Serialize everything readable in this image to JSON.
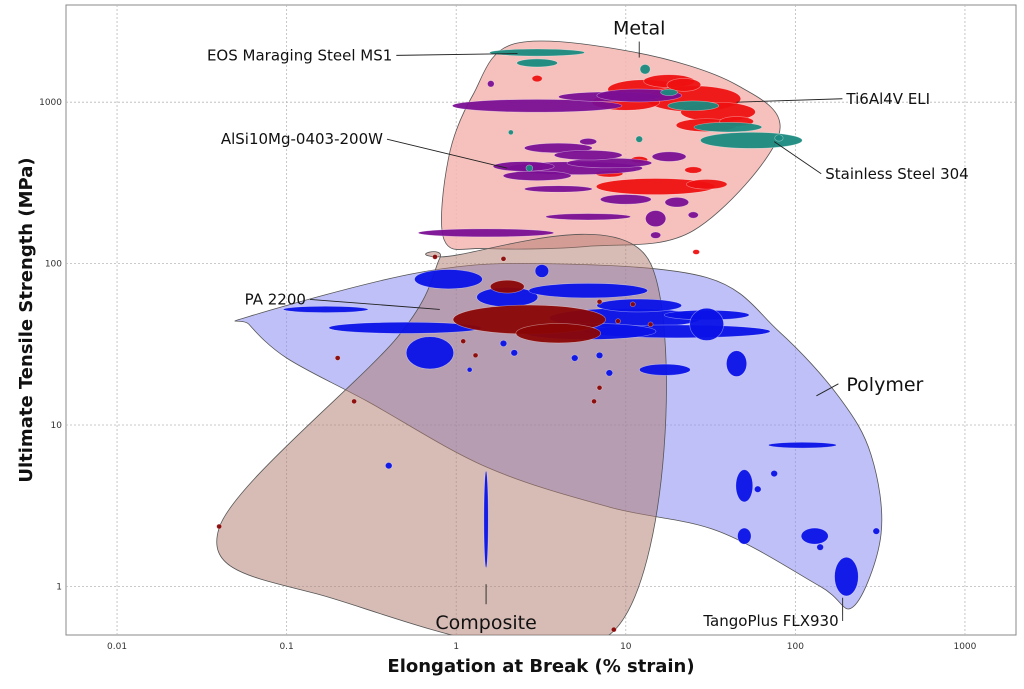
{
  "chart_data": {
    "type": "scatter",
    "title": "",
    "xlabel": "Elongation at Break (% strain)",
    "ylabel": "Ultimate Tensile Strength (MPa)",
    "xscale": "log",
    "yscale": "log",
    "xlim": [
      0.005,
      2000
    ],
    "ylim": [
      0.5,
      4000
    ],
    "grid": true,
    "x_ticks": [
      {
        "v": 0.01,
        "label": "0.01"
      },
      {
        "v": 0.1,
        "label": "0.1"
      },
      {
        "v": 1,
        "label": "1"
      },
      {
        "v": 10,
        "label": "10"
      },
      {
        "v": 100,
        "label": "100"
      },
      {
        "v": 1000,
        "label": "1000"
      }
    ],
    "y_ticks": [
      {
        "v": 1,
        "label": "1"
      },
      {
        "v": 10,
        "label": "10"
      },
      {
        "v": 100,
        "label": "100"
      },
      {
        "v": 1000,
        "label": "1000"
      }
    ],
    "colors": {
      "metal_envelope": "#f4b6b2",
      "polymer_envelope": "#8a8cf0",
      "composite_envelope": "#b07a6e",
      "metal_red": "#ee1111",
      "metal_purple": "#7a0f93",
      "metal_teal": "#1a8a80",
      "polymer_blue": "#0a12e8",
      "composite_maroon": "#8a0606",
      "grid": "#b8b8b8"
    },
    "families": [
      {
        "name": "Metal",
        "label_at": [
          12,
          2900
        ],
        "envelope": [
          [
            2.2,
            2300
          ],
          [
            11,
            2050
          ],
          [
            45,
            1280
          ],
          [
            80,
            630
          ],
          [
            25,
            160
          ],
          [
            6,
            128
          ],
          [
            1.5,
            124
          ],
          [
            0.85,
            140
          ],
          [
            0.9,
            450
          ],
          [
            1.25,
            1100
          ]
        ]
      },
      {
        "name": "Polymer",
        "label_at": [
          200,
          18
        ],
        "envelope": [
          [
            0.06,
            47
          ],
          [
            0.6,
            88
          ],
          [
            3.3,
            100
          ],
          [
            30,
            82
          ],
          [
            80,
            38
          ],
          [
            180,
            15
          ],
          [
            280,
            6.5
          ],
          [
            320,
            2.1
          ],
          [
            220,
            0.75
          ],
          [
            140,
            1.0
          ],
          [
            35,
            2.2
          ],
          [
            8,
            3.1
          ],
          [
            1.5,
            5.5
          ],
          [
            0.3,
            14
          ],
          [
            0.1,
            26
          ],
          [
            0.06,
            42
          ]
        ]
      },
      {
        "name": "Composite",
        "label_at": [
          1.5,
          0.6
        ],
        "envelope": [
          [
            0.8,
            110
          ],
          [
            14,
            100
          ],
          [
            8.5,
            0.53
          ],
          [
            0.15,
            0.9
          ],
          [
            0.04,
            2.3
          ],
          [
            0.45,
            35
          ],
          [
            0.8,
            108
          ]
        ]
      }
    ],
    "annotations": [
      {
        "text": "EOS Maraging Steel MS1",
        "label_at": [
          0.42,
          1950
        ],
        "point": [
          2.3,
          2000
        ]
      },
      {
        "text": "Ti6Al4V ELI",
        "label_at": [
          200,
          1050
        ],
        "point": [
          45,
          1000
        ]
      },
      {
        "text": "AlSi10Mg-0403-200W",
        "label_at": [
          0.37,
          590
        ],
        "point": [
          2,
          390
        ]
      },
      {
        "text": "Stainless Steel 304",
        "label_at": [
          150,
          360
        ],
        "point": [
          75,
          570
        ]
      },
      {
        "text": "PA 2200",
        "label_at": [
          0.13,
          60
        ],
        "point": [
          0.8,
          52
        ]
      },
      {
        "text": "TangoPlus FLX930",
        "label_at": [
          180,
          0.61
        ],
        "point": [
          190,
          0.85
        ]
      }
    ],
    "series": [
      {
        "family": "Metal",
        "color": "metal_red",
        "points": [
          [
            13,
            1200,
            0.22,
            0.06
          ],
          [
            25,
            1050,
            0.28,
            0.08
          ],
          [
            35,
            870,
            0.22,
            0.06
          ],
          [
            18,
            1350,
            0.15,
            0.04
          ],
          [
            30,
            720,
            0.18,
            0.04
          ],
          [
            10,
            1000,
            0.2,
            0.05
          ],
          [
            45,
            760,
            0.1,
            0.03
          ],
          [
            15,
            300,
            0.35,
            0.05
          ],
          [
            30,
            310,
            0.12,
            0.03
          ],
          [
            25,
            380,
            0.05,
            0.02
          ],
          [
            12,
            440,
            0.05,
            0.02
          ],
          [
            8,
            360,
            0.08,
            0.02
          ],
          [
            3,
            1400,
            0.03,
            0.02
          ],
          [
            26,
            118,
            0.02,
            0.015
          ],
          [
            22,
            1280,
            0.1,
            0.04
          ]
        ]
      },
      {
        "family": "Metal",
        "color": "metal_purple",
        "points": [
          [
            3,
            950,
            0.5,
            0.04
          ],
          [
            8,
            1080,
            0.3,
            0.03
          ],
          [
            12,
            1100,
            0.25,
            0.04
          ],
          [
            4,
            520,
            0.2,
            0.03
          ],
          [
            5,
            390,
            0.4,
            0.04
          ],
          [
            8,
            420,
            0.25,
            0.03
          ],
          [
            3,
            350,
            0.2,
            0.03
          ],
          [
            6,
            470,
            0.2,
            0.03
          ],
          [
            4,
            290,
            0.2,
            0.02
          ],
          [
            6,
            195,
            0.25,
            0.02
          ],
          [
            1.5,
            155,
            0.4,
            0.025
          ],
          [
            15,
            190,
            0.06,
            0.05
          ],
          [
            20,
            240,
            0.07,
            0.03
          ],
          [
            18,
            460,
            0.1,
            0.03
          ],
          [
            6,
            570,
            0.05,
            0.02
          ],
          [
            2.5,
            400,
            0.18,
            0.03
          ],
          [
            10,
            250,
            0.15,
            0.03
          ],
          [
            15,
            150,
            0.03,
            0.02
          ],
          [
            25,
            200,
            0.03,
            0.02
          ],
          [
            1.6,
            1300,
            0.02,
            0.02
          ]
        ]
      },
      {
        "family": "Metal",
        "color": "metal_teal",
        "points": [
          [
            3,
            2030,
            0.28,
            0.022
          ],
          [
            3,
            1750,
            0.12,
            0.025
          ],
          [
            55,
            580,
            0.3,
            0.05
          ],
          [
            40,
            700,
            0.2,
            0.03
          ],
          [
            25,
            950,
            0.15,
            0.03
          ],
          [
            13,
            1600,
            0.03,
            0.03
          ],
          [
            2.1,
            650,
            0.015,
            0.015
          ],
          [
            2.7,
            390,
            0.02,
            0.02
          ],
          [
            12,
            590,
            0.02,
            0.02
          ],
          [
            80,
            600,
            0.025,
            0.02
          ],
          [
            18,
            1150,
            0.05,
            0.02
          ]
        ]
      },
      {
        "family": "Polymer",
        "color": "polymer_blue",
        "points": [
          [
            0.5,
            40,
            0.45,
            0.035
          ],
          [
            0.17,
            52,
            0.25,
            0.02
          ],
          [
            0.9,
            80,
            0.2,
            0.06
          ],
          [
            2,
            62,
            0.18,
            0.06
          ],
          [
            0.7,
            28,
            0.14,
            0.1
          ],
          [
            6,
            68,
            0.35,
            0.045
          ],
          [
            10,
            46,
            0.45,
            0.06
          ],
          [
            20,
            38,
            0.55,
            0.04
          ],
          [
            6,
            38,
            0.4,
            0.05
          ],
          [
            12,
            55,
            0.25,
            0.04
          ],
          [
            30,
            48,
            0.25,
            0.03
          ],
          [
            45,
            24,
            0.06,
            0.08
          ],
          [
            17,
            22,
            0.15,
            0.035
          ],
          [
            110,
            7.5,
            0.2,
            0.018
          ],
          [
            50,
            4.2,
            0.05,
            0.1
          ],
          [
            130,
            2.05,
            0.08,
            0.05
          ],
          [
            200,
            1.15,
            0.07,
            0.12
          ],
          [
            1.5,
            2.6,
            0.012,
            0.3
          ],
          [
            50,
            2.05,
            0.04,
            0.05
          ],
          [
            0.4,
            5.6,
            0.02,
            0.02
          ],
          [
            75,
            5,
            0.02,
            0.02
          ],
          [
            60,
            4,
            0.02,
            0.02
          ],
          [
            300,
            2.2,
            0.02,
            0.02
          ],
          [
            140,
            1.75,
            0.02,
            0.02
          ],
          [
            30,
            42,
            0.1,
            0.1
          ],
          [
            3.2,
            90,
            0.04,
            0.04
          ],
          [
            1.2,
            22,
            0.015,
            0.015
          ],
          [
            8,
            21,
            0.02,
            0.02
          ],
          [
            5,
            26,
            0.02,
            0.02
          ],
          [
            7,
            27,
            0.02,
            0.02
          ],
          [
            1.9,
            32,
            0.02,
            0.02
          ],
          [
            2.2,
            28,
            0.02,
            0.02
          ]
        ]
      },
      {
        "family": "Composite",
        "color": "composite_maroon",
        "points": [
          [
            2.7,
            45,
            0.45,
            0.09
          ],
          [
            4,
            37,
            0.25,
            0.06
          ],
          [
            2,
            72,
            0.1,
            0.04
          ],
          [
            0.75,
            110,
            0.015,
            0.015
          ],
          [
            1.9,
            107,
            0.015,
            0.015
          ],
          [
            0.2,
            26,
            0.015,
            0.015
          ],
          [
            0.25,
            14,
            0.015,
            0.015
          ],
          [
            0.04,
            2.35,
            0.015,
            0.015
          ],
          [
            8.5,
            0.54,
            0.015,
            0.015
          ],
          [
            6.5,
            14,
            0.015,
            0.015
          ],
          [
            7,
            17,
            0.015,
            0.015
          ],
          [
            1.1,
            33,
            0.015,
            0.015
          ],
          [
            1.3,
            27,
            0.015,
            0.015
          ],
          [
            9,
            44,
            0.015,
            0.015
          ],
          [
            14,
            42,
            0.015,
            0.015
          ],
          [
            7,
            58,
            0.015,
            0.015
          ],
          [
            11,
            56,
            0.015,
            0.015
          ]
        ]
      }
    ]
  }
}
